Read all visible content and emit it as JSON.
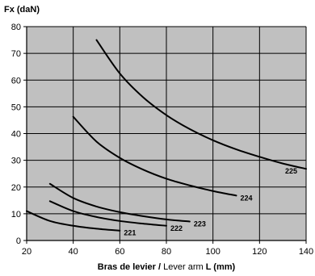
{
  "chart_data": {
    "type": "line",
    "title": "",
    "ylabel": "Fx (daN)",
    "xlabel": {
      "bold_part": "Bras de levier /",
      "normal_part": " Lever arm ",
      "bold_symbol": "L (mm)"
    },
    "xlim": [
      20,
      140
    ],
    "ylim": [
      0,
      80
    ],
    "x_ticks": [
      20,
      40,
      60,
      80,
      100,
      120,
      140
    ],
    "y_ticks": [
      0,
      10,
      20,
      30,
      40,
      50,
      60,
      70,
      80
    ],
    "grid": true,
    "plot_background": "#c0c0c0",
    "line_color": "#000000",
    "series": [
      {
        "name": "221",
        "x": [
          20,
          30,
          40,
          50,
          60
        ],
        "y": [
          11,
          7.3,
          5.5,
          4.4,
          3.7
        ]
      },
      {
        "name": "222",
        "x": [
          30,
          40,
          50,
          60,
          70,
          80
        ],
        "y": [
          14.7,
          11,
          8.8,
          7.3,
          6.3,
          5.5
        ]
      },
      {
        "name": "223",
        "x": [
          30,
          40,
          50,
          60,
          70,
          80,
          90
        ],
        "y": [
          21.2,
          15.9,
          12.7,
          10.6,
          9.1,
          7.9,
          7.1
        ]
      },
      {
        "name": "224",
        "x": [
          40,
          50,
          60,
          70,
          80,
          90,
          100,
          110
        ],
        "y": [
          46.3,
          37,
          30.9,
          26.5,
          23.1,
          20.6,
          18.5,
          16.8
        ]
      },
      {
        "name": "225",
        "x": [
          50,
          60,
          70,
          80,
          90,
          100,
          110,
          120,
          130,
          140
        ],
        "y": [
          75,
          62.5,
          53.6,
          46.9,
          41.7,
          37.5,
          34.1,
          31.3,
          28.8,
          26.8
        ]
      }
    ]
  }
}
